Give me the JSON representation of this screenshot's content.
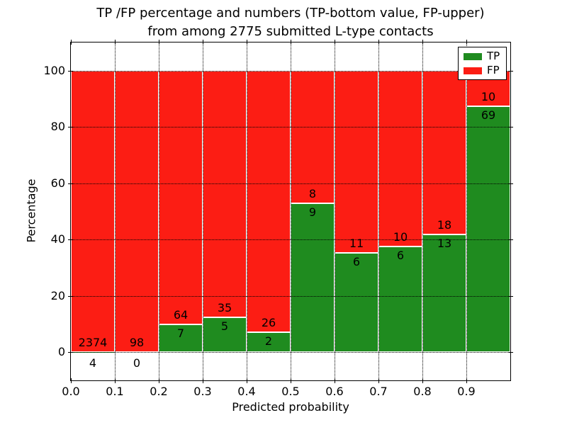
{
  "figure": {
    "title_line1": "TP /FP percentage and numbers (TP-bottom value, FP-upper)",
    "title_line2": "from among 2775 submitted L-type contacts"
  },
  "chart_data": {
    "type": "bar",
    "stacked": true,
    "title": "TP /FP percentage and numbers (TP-bottom value, FP-upper)\nfrom among 2775 submitted L-type contacts",
    "xlabel": "Predicted probability",
    "ylabel": "Percentage",
    "xlim": [
      0.0,
      1.0
    ],
    "ylim": [
      -10,
      110
    ],
    "grid": "dotted-black",
    "x_tick_labels": [
      "0.0",
      "0.1",
      "0.2",
      "0.3",
      "0.4",
      "0.5",
      "0.6",
      "0.7",
      "0.8",
      "0.9"
    ],
    "x_tick_values": [
      0.0,
      0.1,
      0.2,
      0.3,
      0.4,
      0.5,
      0.6,
      0.7,
      0.8,
      0.9
    ],
    "y_tick_values": [
      0,
      20,
      40,
      60,
      80,
      100
    ],
    "total_contacts": 2775,
    "legend": {
      "position": "upper-right",
      "entries": [
        {
          "label": "TP",
          "color": "#1f8b1f"
        },
        {
          "label": "FP",
          "color": "#fc1d14"
        }
      ]
    },
    "colors": {
      "tp": "#1f8b1f",
      "fp": "#fc1d14",
      "bar_edge": "#ffffff",
      "grid": "#000000",
      "background": "#ffffff",
      "text": "#000000"
    },
    "bins": [
      {
        "range": [
          0.0,
          0.1
        ],
        "tp_count": 4,
        "fp_count": 2374,
        "tp_pct": 0.17,
        "fp_pct": 99.83
      },
      {
        "range": [
          0.1,
          0.2
        ],
        "tp_count": 0,
        "fp_count": 98,
        "tp_pct": 0.0,
        "fp_pct": 100.0
      },
      {
        "range": [
          0.2,
          0.3
        ],
        "tp_count": 7,
        "fp_count": 64,
        "tp_pct": 9.86,
        "fp_pct": 90.14
      },
      {
        "range": [
          0.3,
          0.4
        ],
        "tp_count": 5,
        "fp_count": 35,
        "tp_pct": 12.5,
        "fp_pct": 87.5
      },
      {
        "range": [
          0.4,
          0.5
        ],
        "tp_count": 2,
        "fp_count": 26,
        "tp_pct": 7.14,
        "fp_pct": 92.86
      },
      {
        "range": [
          0.5,
          0.6
        ],
        "tp_count": 9,
        "fp_count": 8,
        "tp_pct": 52.94,
        "fp_pct": 47.06
      },
      {
        "range": [
          0.6,
          0.7
        ],
        "tp_count": 6,
        "fp_count": 11,
        "tp_pct": 35.29,
        "fp_pct": 64.71
      },
      {
        "range": [
          0.7,
          0.8
        ],
        "tp_count": 6,
        "fp_count": 10,
        "tp_pct": 37.5,
        "fp_pct": 62.5
      },
      {
        "range": [
          0.8,
          0.9
        ],
        "tp_count": 13,
        "fp_count": 18,
        "tp_pct": 41.94,
        "fp_pct": 58.06
      },
      {
        "range": [
          0.9,
          1.0
        ],
        "tp_count": 69,
        "fp_count": 10,
        "tp_pct": 87.34,
        "fp_pct": 12.66
      }
    ]
  }
}
